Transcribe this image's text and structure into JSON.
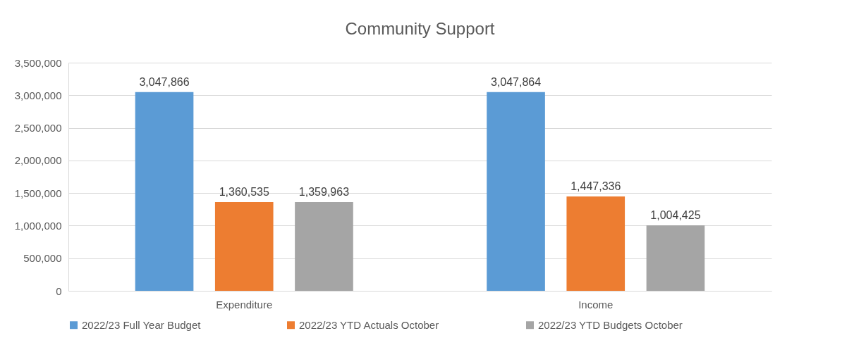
{
  "chart_data": {
    "type": "bar",
    "title": "Community Support",
    "categories": [
      "Expenditure",
      "Income"
    ],
    "series": [
      {
        "name": "2022/23 Full Year Budget",
        "color": "#5b9bd5",
        "values": [
          3047866,
          3047864
        ],
        "value_labels": [
          "3,047,866",
          "3,047,864"
        ]
      },
      {
        "name": "2022/23 YTD Actuals October",
        "color": "#ed7d31",
        "values": [
          1360535,
          1447336
        ],
        "value_labels": [
          "1,360,535",
          "1,447,336"
        ]
      },
      {
        "name": "2022/23 YTD Budgets October",
        "color": "#a5a5a5",
        "values": [
          1359963,
          1004425
        ],
        "value_labels": [
          "1,359,963",
          "1,004,425"
        ]
      }
    ],
    "ylim": [
      0,
      3500000
    ],
    "yticks": [
      0,
      {
        "value": 500000,
        "label": "500,000"
      },
      {
        "value": 1000000,
        "label": "1,000,000"
      },
      {
        "value": 1500000,
        "label": "1,500,000"
      },
      {
        "value": 2000000,
        "label": "2,000,000"
      },
      {
        "value": 2500000,
        "label": "2,500,000"
      },
      {
        "value": 3000000,
        "label": "3,000,000"
      },
      {
        "value": 3500000,
        "label": "3,500,000"
      }
    ],
    "grid": "y",
    "legend": "bottom"
  }
}
